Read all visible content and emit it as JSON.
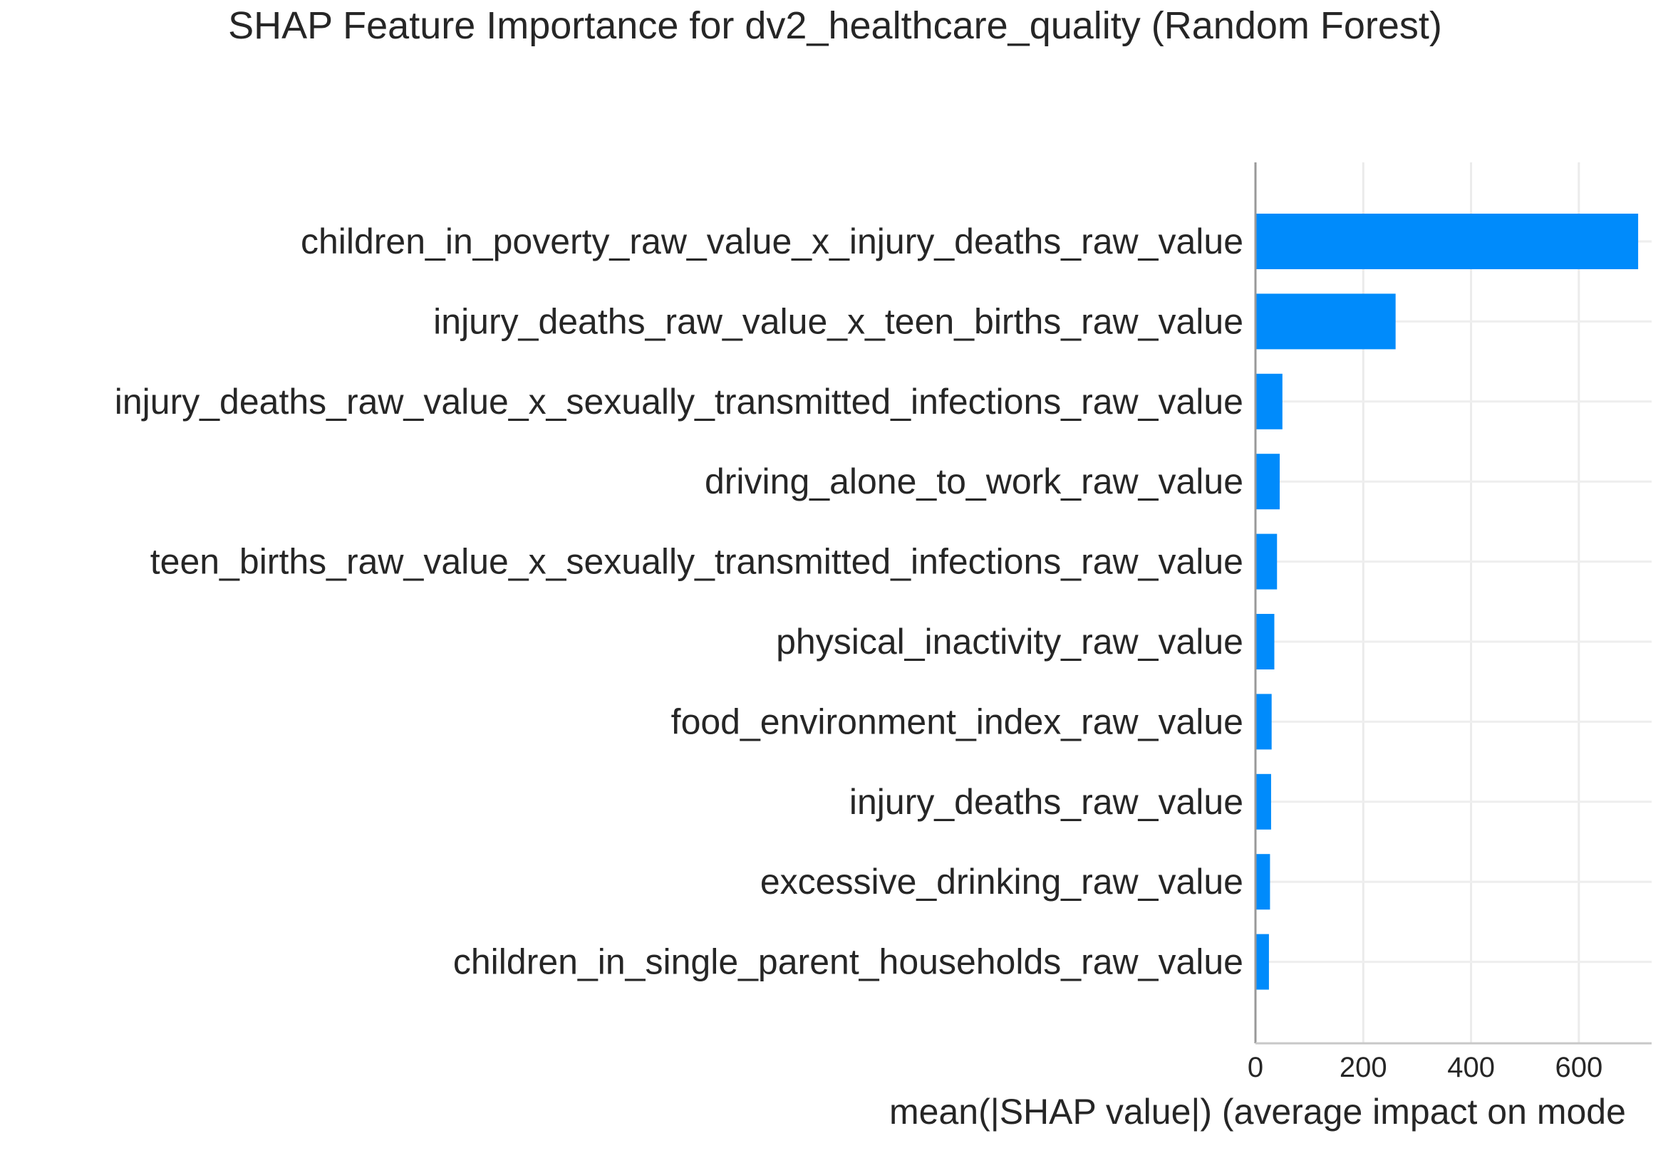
{
  "chart_data": {
    "type": "bar",
    "orientation": "horizontal",
    "title": "SHAP Feature Importance for dv2_healthcare_quality (Random Forest)",
    "xlabel": "mean(|SHAP value|) (average impact on mode",
    "ylabel": "",
    "xlim": [
      0,
      735
    ],
    "xticks": [
      0,
      200,
      400,
      600
    ],
    "grid": true,
    "bar_color": "#008bfb",
    "categories": [
      "children_in_poverty_raw_value_x_injury_deaths_raw_value",
      "injury_deaths_raw_value_x_teen_births_raw_value",
      "injury_deaths_raw_value_x_sexually_transmitted_infections_raw_value",
      "driving_alone_to_work_raw_value",
      "teen_births_raw_value_x_sexually_transmitted_infections_raw_value",
      "physical_inactivity_raw_value",
      "food_environment_index_raw_value",
      "injury_deaths_raw_value",
      "excessive_drinking_raw_value",
      "children_in_single_parent_households_raw_value"
    ],
    "values": [
      710,
      260,
      50,
      45,
      40,
      35,
      30,
      29,
      27,
      25
    ]
  }
}
